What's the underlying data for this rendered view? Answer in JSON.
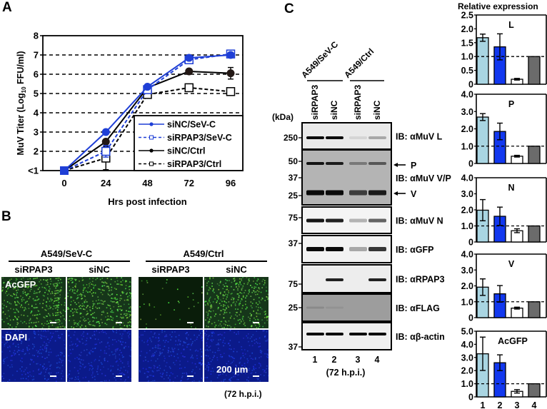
{
  "figure": {
    "panel_labels": [
      "A",
      "B",
      "C"
    ]
  },
  "panel_a": {
    "letter": "A",
    "ylabel": "MuV Titer (Log10 FFU/ml)",
    "ylabel_main": "MuV Titer (Log",
    "ylabel_sub": "10",
    "ylabel_tail": " FFU/ml)",
    "xlabel": "Hrs post infection",
    "yticks": [
      "<1",
      "2",
      "3",
      "4",
      "5",
      "6",
      "7",
      "8"
    ],
    "xticks": [
      "0",
      "24",
      "48",
      "72",
      "96"
    ],
    "legend": [
      {
        "label": "siNC/SeV-C",
        "color": "#1f3fd6",
        "dash": false,
        "marker": "filled-circle"
      },
      {
        "label": "siRPAP3/SeV-C",
        "color": "#1f3fd6",
        "dash": true,
        "marker": "open-square"
      },
      {
        "label": "siNC/Ctrl",
        "color": "#000000",
        "dash": false,
        "marker": "filled-circle"
      },
      {
        "label": "siRPAP3/Ctrl",
        "color": "#000000",
        "dash": true,
        "marker": "open-square"
      }
    ]
  },
  "panel_b": {
    "letter": "B",
    "groups": [
      {
        "label": "A549/SeV-C",
        "columns": [
          "siRPAP3",
          "siNC"
        ]
      },
      {
        "label": "A549/Ctrl",
        "columns": [
          "siRPAP3",
          "siNC"
        ]
      }
    ],
    "rows": [
      "AcGFP",
      "DAPI"
    ],
    "scale_label": "200 µm",
    "timepoint": "(72 h.p.i.)"
  },
  "panel_c": {
    "letter": "C",
    "groups": [
      {
        "label": "A549/SeV-C"
      },
      {
        "label": "A549/Ctrl"
      }
    ],
    "lanes": [
      "siRPAP3",
      "siNC",
      "siRPAP3",
      "siNC"
    ],
    "lane_numbers": [
      "1",
      "2",
      "3",
      "4"
    ],
    "kda_label": "(kDa)",
    "timepoint": "(72 h.p.i.)",
    "blots": [
      {
        "ib": "IB: αMuV L",
        "markers": [
          "250"
        ]
      },
      {
        "ib": "IB: αMuV V/P",
        "markers": [
          "50",
          "37",
          "25"
        ],
        "arrows": [
          "P",
          "V"
        ]
      },
      {
        "ib": "IB: αMuV N",
        "markers": [
          "75"
        ]
      },
      {
        "ib": "IB: αGFP",
        "markers": [
          "37"
        ]
      },
      {
        "ib": "IB: αRPAP3",
        "markers": [
          "75"
        ]
      },
      {
        "ib": "IB: αFLAG",
        "markers": [
          "25"
        ]
      },
      {
        "ib": "IB: αβ-actin",
        "markers": [
          "37"
        ]
      }
    ],
    "relative_expression_title": "Relative expression",
    "bar_colors": [
      "#a9d5e2",
      "#1238ef",
      "#ffffff",
      "#6b6b6b"
    ]
  },
  "chart_data": [
    {
      "type": "line",
      "title": "MuV growth kinetics",
      "xlabel": "Hrs post infection",
      "ylabel": "MuV Titer (Log10 FFU/ml)",
      "x": [
        0,
        24,
        48,
        72,
        96
      ],
      "ylim": [
        1,
        8
      ],
      "grid": "dashed horizontal",
      "legend_position": "lower right",
      "series": [
        {
          "name": "siNC/SeV-C",
          "values": [
            1.0,
            3.0,
            5.35,
            6.85,
            7.0
          ],
          "errors": [
            0,
            0.05,
            0.1,
            0.1,
            0.1
          ]
        },
        {
          "name": "siRPAP3/SeV-C",
          "values": [
            1.0,
            2.0,
            5.2,
            6.75,
            7.05
          ],
          "errors": [
            0,
            0.3,
            0.1,
            0.1,
            0.1
          ]
        },
        {
          "name": "siNC/Ctrl",
          "values": [
            1.0,
            2.5,
            5.3,
            6.15,
            6.05
          ],
          "errors": [
            0,
            0.1,
            0.1,
            0.1,
            0.3
          ]
        },
        {
          "name": "siRPAP3/Ctrl",
          "values": [
            1.0,
            1.65,
            4.95,
            5.3,
            5.1
          ],
          "errors": [
            0,
            0.6,
            0.1,
            0.1,
            0.1
          ]
        }
      ]
    },
    {
      "type": "bar",
      "title": "L",
      "categories": [
        "1",
        "2",
        "3",
        "4"
      ],
      "values": [
        1.68,
        1.35,
        0.18,
        1.0
      ],
      "errors": [
        0.13,
        0.47,
        0.03,
        0
      ],
      "ylim": [
        0,
        2.5
      ],
      "yticks": [
        "0",
        "0.5",
        "1.0",
        "1.5",
        "2.0",
        "2.5"
      ],
      "reference_line": 1.0
    },
    {
      "type": "bar",
      "title": "P",
      "categories": [
        "1",
        "2",
        "3",
        "4"
      ],
      "values": [
        2.68,
        1.85,
        0.42,
        1.0
      ],
      "errors": [
        0.2,
        0.48,
        0.05,
        0
      ],
      "ylim": [
        0,
        4.0
      ],
      "yticks": [
        "0",
        "1.0",
        "2.0",
        "3.0",
        "4.0"
      ],
      "reference_line": 1.0
    },
    {
      "type": "bar",
      "title": "N",
      "categories": [
        "1",
        "2",
        "3",
        "4"
      ],
      "values": [
        1.98,
        1.6,
        0.7,
        1.0
      ],
      "errors": [
        0.66,
        0.57,
        0.12,
        0
      ],
      "ylim": [
        0,
        4.0
      ],
      "yticks": [
        "0",
        "1.0",
        "2.0",
        "3.0",
        "4.0"
      ],
      "reference_line": 1.0
    },
    {
      "type": "bar",
      "title": "V",
      "categories": [
        "1",
        "2",
        "3",
        "4"
      ],
      "values": [
        1.92,
        1.5,
        0.6,
        1.0
      ],
      "errors": [
        0.52,
        0.52,
        0.06,
        0
      ],
      "ylim": [
        0,
        4.0
      ],
      "yticks": [
        "0",
        "1.0",
        "2.0",
        "3.0",
        "4.0"
      ],
      "reference_line": 1.0
    },
    {
      "type": "bar",
      "title": "AcGFP",
      "categories": [
        "1",
        "2",
        "3",
        "4"
      ],
      "values": [
        3.28,
        2.6,
        0.42,
        1.0
      ],
      "errors": [
        1.27,
        0.6,
        0.13,
        0
      ],
      "ylim": [
        0,
        5.0
      ],
      "yticks": [
        "0",
        "1.0",
        "2.0",
        "3.0",
        "4.0",
        "5.0"
      ],
      "reference_line": 1.0
    }
  ]
}
